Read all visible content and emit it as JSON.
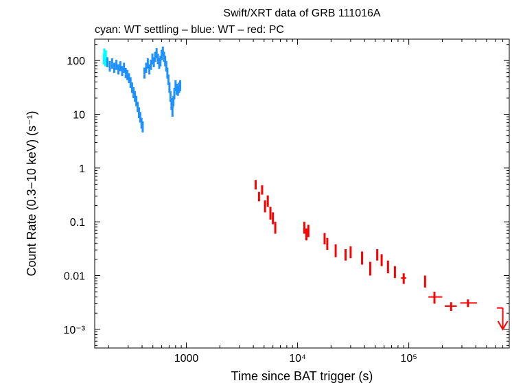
{
  "chart_data": {
    "type": "scatter",
    "title": "Swift/XRT data of GRB 111016A",
    "subtitle": "cyan: WT settling – blue: WT – red: PC",
    "xlabel": "Time since BAT trigger (s)",
    "ylabel": "Count Rate (0.3−10 keV) (s⁻¹)",
    "x_scale": "log",
    "y_scale": "log",
    "xlim": [
      150,
      800000
    ],
    "ylim": [
      0.00045,
      250
    ],
    "x_ticks": [
      {
        "value": 1000,
        "label": "1000"
      },
      {
        "value": 10000,
        "label": "10⁴"
      },
      {
        "value": 100000,
        "label": "10⁵"
      }
    ],
    "y_ticks": [
      {
        "value": 100,
        "label": "100"
      },
      {
        "value": 10,
        "label": "10"
      },
      {
        "value": 1,
        "label": "1"
      },
      {
        "value": 0.1,
        "label": "0.1"
      },
      {
        "value": 0.01,
        "label": "0.01"
      },
      {
        "value": 0.001,
        "label": "10⁻³"
      }
    ],
    "series": [
      {
        "name": "WT settling",
        "color": "#00ffff",
        "x": [
          181,
          183,
          185,
          187,
          189
        ],
        "y": [
          110,
          140,
          125,
          100,
          130
        ],
        "yerr": [
          25,
          28,
          25,
          22,
          25
        ]
      },
      {
        "name": "WT",
        "color": "#1e90ff",
        "x": [
          195,
          205,
          215,
          225,
          235,
          245,
          255,
          265,
          275,
          285,
          295,
          305,
          315,
          325,
          335,
          345,
          355,
          365,
          375,
          385,
          395,
          405,
          420,
          435,
          450,
          465,
          480,
          495,
          510,
          525,
          540,
          555,
          570,
          585,
          600,
          615,
          630,
          645,
          660,
          675,
          690,
          705,
          720,
          735,
          750,
          765,
          780,
          800,
          820,
          840,
          860,
          880
        ],
        "y": [
          95,
          80,
          90,
          75,
          85,
          70,
          80,
          65,
          75,
          60,
          55,
          48,
          40,
          32,
          26,
          22,
          18,
          14,
          11,
          9,
          7,
          6,
          60,
          75,
          90,
          70,
          85,
          110,
          95,
          120,
          140,
          110,
          90,
          100,
          130,
          150,
          120,
          100,
          80,
          60,
          45,
          32,
          22,
          16,
          12,
          18,
          25,
          35,
          30,
          28,
          32,
          35
        ],
        "yerr": [
          20,
          18,
          20,
          16,
          18,
          15,
          17,
          14,
          16,
          13,
          12,
          10,
          9,
          7,
          6,
          5,
          4,
          3,
          2.5,
          2,
          1.6,
          1.4,
          14,
          16,
          20,
          15,
          18,
          25,
          20,
          25,
          30,
          24,
          20,
          22,
          28,
          32,
          26,
          22,
          18,
          14,
          10,
          7,
          5,
          4,
          3,
          4,
          6,
          8,
          7,
          6,
          7,
          8
        ]
      },
      {
        "name": "PC",
        "color": "#ff0000",
        "x": [
          4200,
          4500,
          4800,
          5100,
          5400,
          5700,
          6000,
          6300,
          11500,
          12000,
          12500,
          17500,
          18500,
          22000,
          27000,
          30000,
          38000,
          45000,
          52000,
          57000,
          65000,
          75000,
          90000,
          140000,
          170000,
          240000,
          340000
        ],
        "xerr_lo": [
          0,
          0,
          0,
          0,
          0,
          0,
          0,
          0,
          0,
          0,
          0,
          0,
          0,
          0,
          0,
          0,
          0,
          0,
          0,
          0,
          0,
          0,
          5000,
          0,
          20000,
          30000,
          50000
        ],
        "xerr_hi": [
          0,
          0,
          0,
          0,
          0,
          0,
          0,
          0,
          0,
          0,
          0,
          0,
          0,
          0,
          0,
          0,
          0,
          0,
          0,
          0,
          0,
          0,
          5000,
          0,
          30000,
          30000,
          70000
        ],
        "y": [
          0.5,
          0.3,
          0.4,
          0.2,
          0.25,
          0.15,
          0.12,
          0.08,
          0.08,
          0.06,
          0.07,
          0.05,
          0.04,
          0.03,
          0.025,
          0.028,
          0.022,
          0.014,
          0.025,
          0.02,
          0.015,
          0.012,
          0.009,
          0.008,
          0.004,
          0.0027,
          0.0031
        ],
        "yerr": [
          0.1,
          0.06,
          0.08,
          0.05,
          0.06,
          0.04,
          0.03,
          0.02,
          0.02,
          0.015,
          0.018,
          0.012,
          0.01,
          0.008,
          0.006,
          0.007,
          0.006,
          0.004,
          0.006,
          0.005,
          0.004,
          0.003,
          0.002,
          0.002,
          0.001,
          0.0005,
          0.0005
        ]
      }
    ],
    "upper_limits": [
      {
        "series": "PC",
        "color": "#ff0000",
        "x": 700000,
        "xerr_lo": 80000,
        "xerr_hi": 0,
        "y": 0.0025,
        "arrow_to": 0.001
      }
    ],
    "grid": false,
    "legend": "none"
  }
}
